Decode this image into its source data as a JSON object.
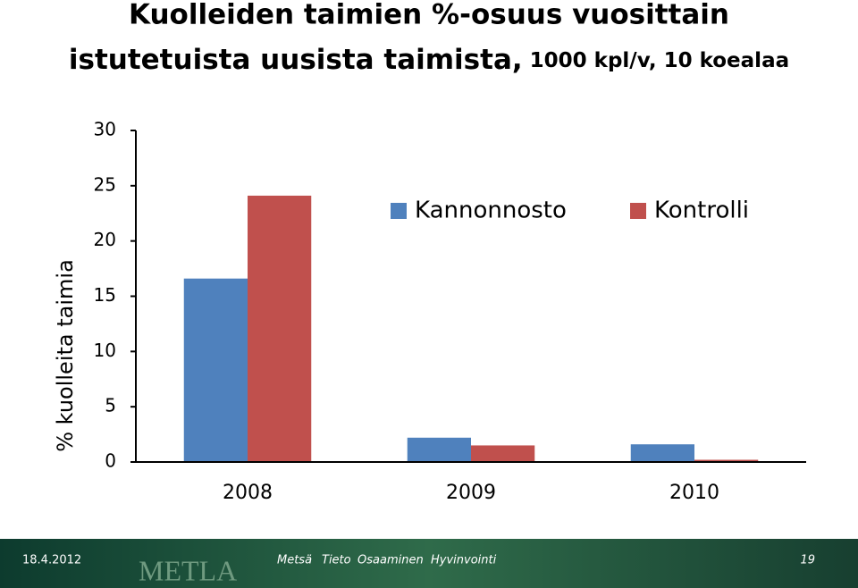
{
  "chart_data": {
    "type": "bar",
    "title": [
      "Kuolleiden taimien %-osuus vuosittain",
      "istutetuista uusista taimista,"
    ],
    "subtitle": "1000 kpl/v, 10 koealaa",
    "y_label": "% kuolleita taimia",
    "categories": [
      "2008",
      "2009",
      "2010"
    ],
    "series": [
      {
        "name": "Kannonnosto",
        "color": "#4f81bd",
        "values": [
          16.6,
          2.2,
          1.6
        ]
      },
      {
        "name": "Kontrolli",
        "color": "#c0504d",
        "values": [
          24.1,
          1.5,
          0.2
        ]
      }
    ],
    "ylim": [
      0,
      30
    ],
    "yticks": [
      0,
      5,
      10,
      15,
      20,
      25,
      30
    ],
    "grid": false,
    "legend": "top-right"
  },
  "footer": {
    "date": "18.4.2012",
    "logo": "METLA",
    "words": [
      "Metsä",
      "Tieto",
      "Osaaminen",
      "Hyvinvointi"
    ],
    "page": "19"
  }
}
